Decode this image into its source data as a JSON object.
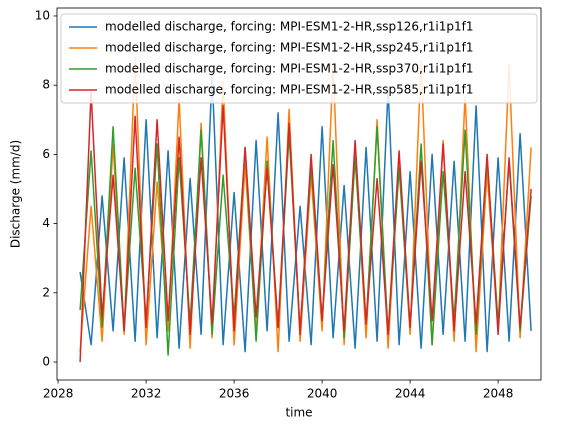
{
  "chart_data": {
    "type": "line",
    "xlabel": "time",
    "ylabel": "Discharge (mm/d)",
    "x": [
      2029,
      2029.5,
      2030,
      2030.5,
      2031,
      2031.5,
      2032,
      2032.5,
      2033,
      2033.5,
      2034,
      2034.5,
      2035,
      2035.5,
      2036,
      2036.5,
      2037,
      2037.5,
      2038,
      2038.5,
      2039,
      2039.5,
      2040,
      2040.5,
      2041,
      2041.5,
      2042,
      2042.5,
      2043,
      2043.5,
      2044,
      2044.5,
      2045,
      2045.5,
      2046,
      2046.5,
      2047,
      2047.5,
      2048,
      2048.5,
      2049,
      2049.5
    ],
    "series": [
      {
        "name": "modelled discharge, forcing: MPI-ESM1-2-HR,ssp126,r1i1p1f1",
        "color": "#1f77b4",
        "values": [
          2.6,
          0.5,
          4.8,
          0.9,
          5.9,
          0.6,
          7.0,
          0.7,
          6.1,
          0.4,
          5.3,
          0.8,
          8.3,
          0.5,
          4.9,
          0.3,
          6.4,
          0.9,
          7.2,
          0.6,
          4.5,
          0.5,
          6.8,
          0.7,
          5.1,
          0.4,
          6.2,
          0.6,
          7.9,
          0.5,
          5.5,
          0.4,
          6.0,
          0.8,
          5.8,
          0.6,
          7.4,
          0.3,
          5.9,
          0.6,
          6.6,
          0.9
        ]
      },
      {
        "name": "modelled discharge, forcing: MPI-ESM1-2-HR,ssp245,r1i1p1f1",
        "color": "#ff7f0e",
        "values": [
          0.3,
          4.5,
          0.6,
          6.3,
          0.8,
          8.8,
          0.5,
          5.2,
          0.9,
          7.6,
          0.4,
          6.9,
          0.7,
          8.1,
          0.5,
          5.7,
          0.8,
          6.5,
          0.3,
          7.3,
          0.6,
          5.4,
          0.9,
          8.6,
          0.5,
          6.1,
          0.7,
          7.0,
          0.4,
          5.8,
          0.8,
          8.7,
          0.5,
          6.4,
          0.6,
          7.7,
          0.3,
          5.5,
          0.9,
          8.6,
          0.7,
          6.2
        ]
      },
      {
        "name": "modelled discharge, forcing: MPI-ESM1-2-HR,ssp370,r1i1p1f1",
        "color": "#2ca02c",
        "values": [
          1.5,
          6.1,
          1.0,
          6.8,
          0.9,
          5.6,
          1.2,
          6.3,
          0.2,
          5.9,
          1.1,
          6.7,
          0.8,
          5.4,
          1.3,
          6.2,
          0.6,
          5.8,
          1.0,
          6.6,
          0.9,
          5.7,
          1.2,
          6.4,
          0.7,
          5.9,
          1.1,
          6.8,
          0.8,
          5.6,
          1.0,
          6.3,
          0.5,
          5.5,
          1.2,
          6.7,
          0.8,
          5.9,
          1.1,
          5.8,
          0.9,
          4.8
        ]
      },
      {
        "name": "modelled discharge, forcing: MPI-ESM1-2-HR,ssp585,r1i1p1f1",
        "color": "#d62728",
        "values": [
          0.0,
          7.8,
          1.3,
          5.4,
          0.9,
          7.1,
          1.0,
          7.0,
          1.2,
          6.5,
          0.8,
          5.9,
          1.1,
          7.4,
          0.9,
          6.2,
          1.3,
          5.6,
          1.0,
          6.9,
          0.8,
          6.0,
          1.2,
          5.7,
          0.9,
          6.4,
          1.1,
          5.3,
          0.8,
          6.1,
          1.0,
          5.8,
          1.2,
          6.3,
          0.9,
          5.5,
          1.1,
          6.0,
          0.8,
          5.9,
          1.0,
          5.0
        ]
      }
    ],
    "xlim": [
      2027.95,
      2049.95
    ],
    "xticks": [
      2028,
      2032,
      2036,
      2040,
      2044,
      2048
    ],
    "ylim": [
      -0.52,
      10.23
    ],
    "yticks": [
      0,
      2,
      4,
      6,
      8,
      10
    ],
    "grid": false,
    "legend": "upper right"
  }
}
